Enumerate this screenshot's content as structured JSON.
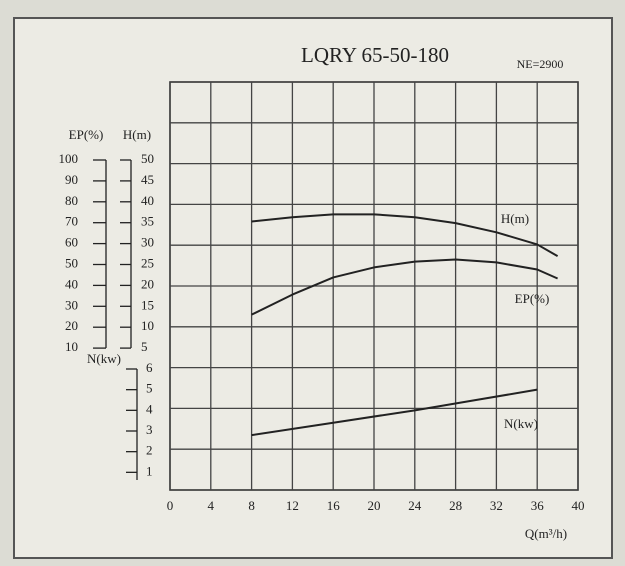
{
  "chart_data": {
    "type": "line",
    "title": "LQRY 65-50-180",
    "subtitle": "NE=2900",
    "x_label": "Q(m³/h)",
    "y_label": "EP(%)",
    "y2_label": "H(m)",
    "y3_label": "N(kw)",
    "xlim": [
      0,
      40
    ],
    "xticks": [
      0,
      4,
      8,
      12,
      16,
      20,
      24,
      28,
      32,
      36,
      40
    ],
    "ylim": [
      0,
      100
    ],
    "yticks": [
      10,
      20,
      30,
      40,
      50,
      60,
      70,
      80,
      90,
      100
    ],
    "y2lim": [
      0,
      50
    ],
    "y2ticks": [
      5,
      10,
      15,
      20,
      25,
      30,
      35,
      40,
      45,
      50
    ],
    "y3lim": [
      0,
      6
    ],
    "y3ticks": [
      1,
      2,
      3,
      4,
      5,
      6
    ],
    "grid": true,
    "series": [
      {
        "name": "H(m)",
        "color": "#222222",
        "axis": "y2",
        "x": [
          8,
          12,
          16,
          20,
          24,
          28,
          32,
          36,
          38
        ],
        "values": [
          35.3,
          36.3,
          37,
          37,
          36.3,
          34.9,
          32.7,
          29.8,
          27
        ]
      },
      {
        "name": "EP(%)",
        "color": "#222222",
        "axis": "y",
        "x": [
          8,
          12,
          16,
          20,
          24,
          28,
          32,
          36,
          38
        ],
        "values": [
          26,
          35.6,
          43.8,
          48.6,
          51.4,
          52.4,
          51,
          47.6,
          43.3
        ]
      },
      {
        "name": "N(kw)",
        "color": "#222222",
        "axis": "y3",
        "x": [
          8,
          16,
          24,
          30,
          36
        ],
        "values": [
          2.8,
          3.4,
          4.0,
          4.5,
          5.0
        ]
      }
    ]
  }
}
